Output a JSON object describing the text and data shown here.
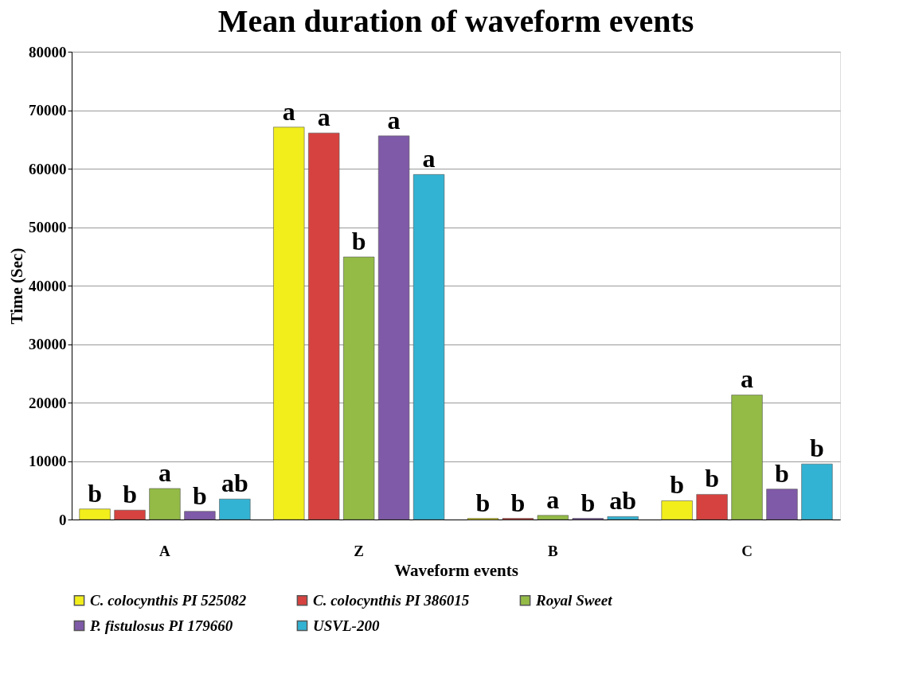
{
  "chart_data": {
    "type": "bar",
    "title": "Mean duration of waveform events",
    "xlabel": "Waveform events",
    "ylabel": "Time (Sec)",
    "categories": [
      "A",
      "Z",
      "B",
      "C"
    ],
    "series": [
      {
        "name": "C. colocynthis PI 525082",
        "color": "#f2ee1c",
        "values": [
          1800,
          67100,
          200,
          3200
        ],
        "value_labels": [
          "b",
          "a",
          "b",
          "b"
        ]
      },
      {
        "name": "C. colocynthis PI 386015",
        "color": "#d6423f",
        "values": [
          1600,
          66100,
          200,
          4300
        ],
        "value_labels": [
          "b",
          "a",
          "b",
          "b"
        ]
      },
      {
        "name": "Royal Sweet",
        "color": "#93bb46",
        "values": [
          5300,
          44900,
          700,
          21300
        ],
        "value_labels": [
          "a",
          "b",
          "a",
          "a"
        ]
      },
      {
        "name": "P. fistulosus PI 179660",
        "color": "#7f5aa8",
        "values": [
          1400,
          65600,
          200,
          5200
        ],
        "value_labels": [
          "b",
          "a",
          "b",
          "b"
        ]
      },
      {
        "name": "USVL-200",
        "color": "#33b3d3",
        "values": [
          3500,
          59000,
          500,
          9500
        ],
        "value_labels": [
          "ab",
          "a",
          "ab",
          "b"
        ]
      }
    ],
    "ylim": [
      0,
      80000
    ],
    "yticks": [
      0,
      10000,
      20000,
      30000,
      40000,
      50000,
      60000,
      70000,
      80000
    ],
    "grid": "y",
    "legend": "bottom"
  }
}
